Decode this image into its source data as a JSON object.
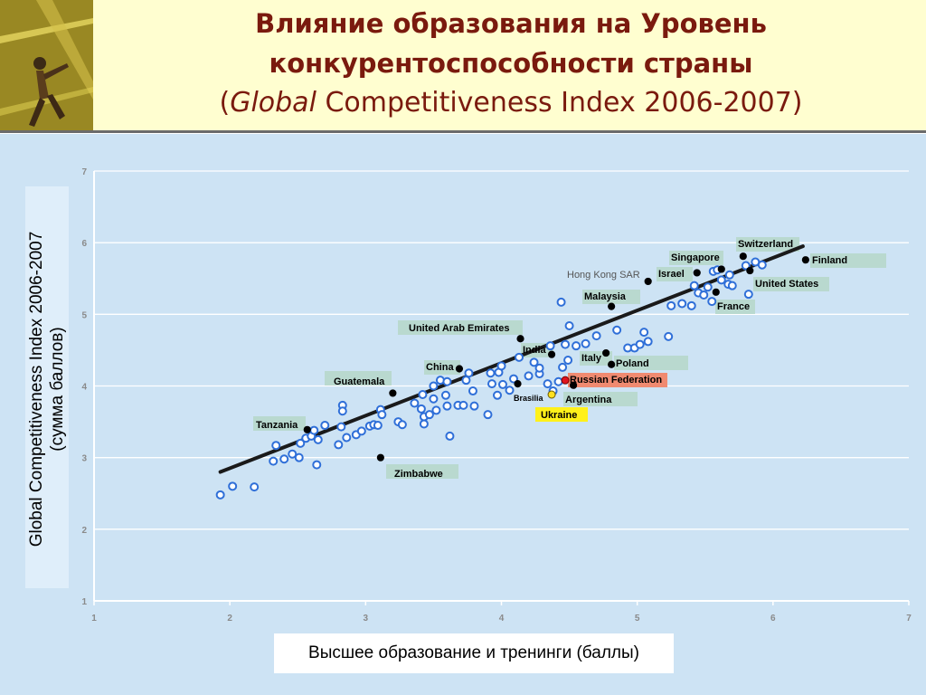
{
  "title": {
    "line1": "Влияние образования на  Уровень",
    "line2": "конкурентоспособности страны",
    "line3_open": "(",
    "line3_italic": "Global",
    "line3_rest": " Competitiveness Index 2006-2007)"
  },
  "colors": {
    "header_bg": "#fffed0",
    "title": "#7a1a0e",
    "chart_bg": "#cde3f4",
    "point_fill": "#ffffff",
    "point_stroke": "#2f6fd8",
    "highlight_point": "#000000",
    "russia_point": "#e0141e",
    "ukraine_point": "#ffe020",
    "trend_line": "#1a1a1a",
    "label_tag": "#b9d9cf",
    "russia_tag": "#f08a70",
    "ukraine_tag": "#fff11a"
  },
  "chart_data": {
    "type": "scatter",
    "title": "",
    "xlabel": "Высшее образование и тренинги (баллы)",
    "ylabel_line1": "Global Competitiveness Index 2006-2007",
    "ylabel_line2": "(сумма баллов)",
    "xlim": [
      1,
      7
    ],
    "ylim": [
      1,
      7
    ],
    "x_ticks": [
      "1",
      "2",
      "3",
      "4",
      "5",
      "6",
      "7"
    ],
    "y_ticks": [
      "1",
      "2",
      "3",
      "4",
      "5",
      "6",
      "7"
    ],
    "grid": "horizontal",
    "trend_line": {
      "from": [
        1.93,
        2.8
      ],
      "to": [
        6.22,
        5.95
      ]
    },
    "highlighted": [
      {
        "name": "Switzerland",
        "x": 5.78,
        "y": 5.81,
        "label_style": "tag"
      },
      {
        "name": "Finland",
        "x": 6.24,
        "y": 5.76,
        "label_style": "tag"
      },
      {
        "name": "Singapore",
        "x": 5.62,
        "y": 5.63,
        "label_style": "tag"
      },
      {
        "name": "Israel",
        "x": 5.44,
        "y": 5.58,
        "label_style": "tag"
      },
      {
        "name": "Hong Kong SAR",
        "x": 5.08,
        "y": 5.46,
        "label_style": "gray"
      },
      {
        "name": "United States",
        "x": 5.83,
        "y": 5.61,
        "label_style": "tag"
      },
      {
        "name": "Malaysia",
        "x": 4.81,
        "y": 5.11,
        "label_style": "tag"
      },
      {
        "name": "France",
        "x": 5.58,
        "y": 5.31,
        "label_style": "tag"
      },
      {
        "name": "United Arab Emirates",
        "x": 4.14,
        "y": 4.66,
        "label_style": "tag"
      },
      {
        "name": "India",
        "x": 4.37,
        "y": 4.44,
        "label_style": "tag"
      },
      {
        "name": "Italy",
        "x": 4.77,
        "y": 4.46,
        "label_style": "tag"
      },
      {
        "name": "Poland",
        "x": 4.81,
        "y": 4.3,
        "label_style": "tag"
      },
      {
        "name": "China",
        "x": 3.69,
        "y": 4.24,
        "label_style": "tag"
      },
      {
        "name": "Russian Federation",
        "x": 4.47,
        "y": 4.08,
        "label_style": "russia"
      },
      {
        "name": "Brasilia",
        "x": 4.12,
        "y": 4.03,
        "label_style": "plain"
      },
      {
        "name": "Argentina",
        "x": 4.53,
        "y": 4.01,
        "label_style": "tag"
      },
      {
        "name": "Guatemala",
        "x": 3.2,
        "y": 3.9,
        "label_style": "tag"
      },
      {
        "name": "Ukraine",
        "x": 4.37,
        "y": 3.88,
        "label_style": "ukraine"
      },
      {
        "name": "Tanzania",
        "x": 2.57,
        "y": 3.39,
        "label_style": "tag"
      },
      {
        "name": "Zimbabwe",
        "x": 3.11,
        "y": 3.0,
        "label_style": "tag"
      }
    ],
    "other_points": [
      [
        1.93,
        2.48
      ],
      [
        2.02,
        2.6
      ],
      [
        2.18,
        2.59
      ],
      [
        2.32,
        2.95
      ],
      [
        2.34,
        3.17
      ],
      [
        2.4,
        2.98
      ],
      [
        2.46,
        3.05
      ],
      [
        2.51,
        3.0
      ],
      [
        2.52,
        3.2
      ],
      [
        2.56,
        3.27
      ],
      [
        2.6,
        3.3
      ],
      [
        2.62,
        3.38
      ],
      [
        2.64,
        2.9
      ],
      [
        2.65,
        3.25
      ],
      [
        2.7,
        3.45
      ],
      [
        2.8,
        3.18
      ],
      [
        2.82,
        3.43
      ],
      [
        2.83,
        3.73
      ],
      [
        2.83,
        3.65
      ],
      [
        2.86,
        3.28
      ],
      [
        2.93,
        3.32
      ],
      [
        2.97,
        3.37
      ],
      [
        3.03,
        3.44
      ],
      [
        3.06,
        3.46
      ],
      [
        3.09,
        3.45
      ],
      [
        3.11,
        3.67
      ],
      [
        3.12,
        3.6
      ],
      [
        3.24,
        3.5
      ],
      [
        3.27,
        3.46
      ],
      [
        3.36,
        3.76
      ],
      [
        3.42,
        3.88
      ],
      [
        3.41,
        3.68
      ],
      [
        3.43,
        3.47
      ],
      [
        3.43,
        3.57
      ],
      [
        3.47,
        3.6
      ],
      [
        3.5,
        4.0
      ],
      [
        3.5,
        3.82
      ],
      [
        3.52,
        3.66
      ],
      [
        3.55,
        4.08
      ],
      [
        3.59,
        3.87
      ],
      [
        3.6,
        4.06
      ],
      [
        3.6,
        3.72
      ],
      [
        3.62,
        3.3
      ],
      [
        3.68,
        3.73
      ],
      [
        3.72,
        3.73
      ],
      [
        3.74,
        4.08
      ],
      [
        3.76,
        4.18
      ],
      [
        3.79,
        3.93
      ],
      [
        3.8,
        3.72
      ],
      [
        3.9,
        3.6
      ],
      [
        3.92,
        4.18
      ],
      [
        3.93,
        4.03
      ],
      [
        3.97,
        3.87
      ],
      [
        3.98,
        4.19
      ],
      [
        4.0,
        4.28
      ],
      [
        4.01,
        4.02
      ],
      [
        4.06,
        3.94
      ],
      [
        4.09,
        4.1
      ],
      [
        4.13,
        4.4
      ],
      [
        4.2,
        4.14
      ],
      [
        4.24,
        4.33
      ],
      [
        4.28,
        4.17
      ],
      [
        4.28,
        4.25
      ],
      [
        4.34,
        4.03
      ],
      [
        4.36,
        4.56
      ],
      [
        4.38,
        3.93
      ],
      [
        4.42,
        4.06
      ],
      [
        4.44,
        5.17
      ],
      [
        4.45,
        4.26
      ],
      [
        4.47,
        4.58
      ],
      [
        4.49,
        4.36
      ],
      [
        4.5,
        4.84
      ],
      [
        4.55,
        4.56
      ],
      [
        4.62,
        4.59
      ],
      [
        4.7,
        4.7
      ],
      [
        4.85,
        4.78
      ],
      [
        4.93,
        4.53
      ],
      [
        4.98,
        4.53
      ],
      [
        5.02,
        4.58
      ],
      [
        5.05,
        4.75
      ],
      [
        5.08,
        4.62
      ],
      [
        5.23,
        4.69
      ],
      [
        5.25,
        5.12
      ],
      [
        5.33,
        5.15
      ],
      [
        5.4,
        5.12
      ],
      [
        5.42,
        5.4
      ],
      [
        5.45,
        5.3
      ],
      [
        5.49,
        5.27
      ],
      [
        5.52,
        5.38
      ],
      [
        5.55,
        5.18
      ],
      [
        5.56,
        5.6
      ],
      [
        5.59,
        5.62
      ],
      [
        5.62,
        5.48
      ],
      [
        5.67,
        5.42
      ],
      [
        5.68,
        5.55
      ],
      [
        5.7,
        5.4
      ],
      [
        5.8,
        5.68
      ],
      [
        5.82,
        5.28
      ],
      [
        5.87,
        5.73
      ],
      [
        5.92,
        5.69
      ]
    ]
  }
}
